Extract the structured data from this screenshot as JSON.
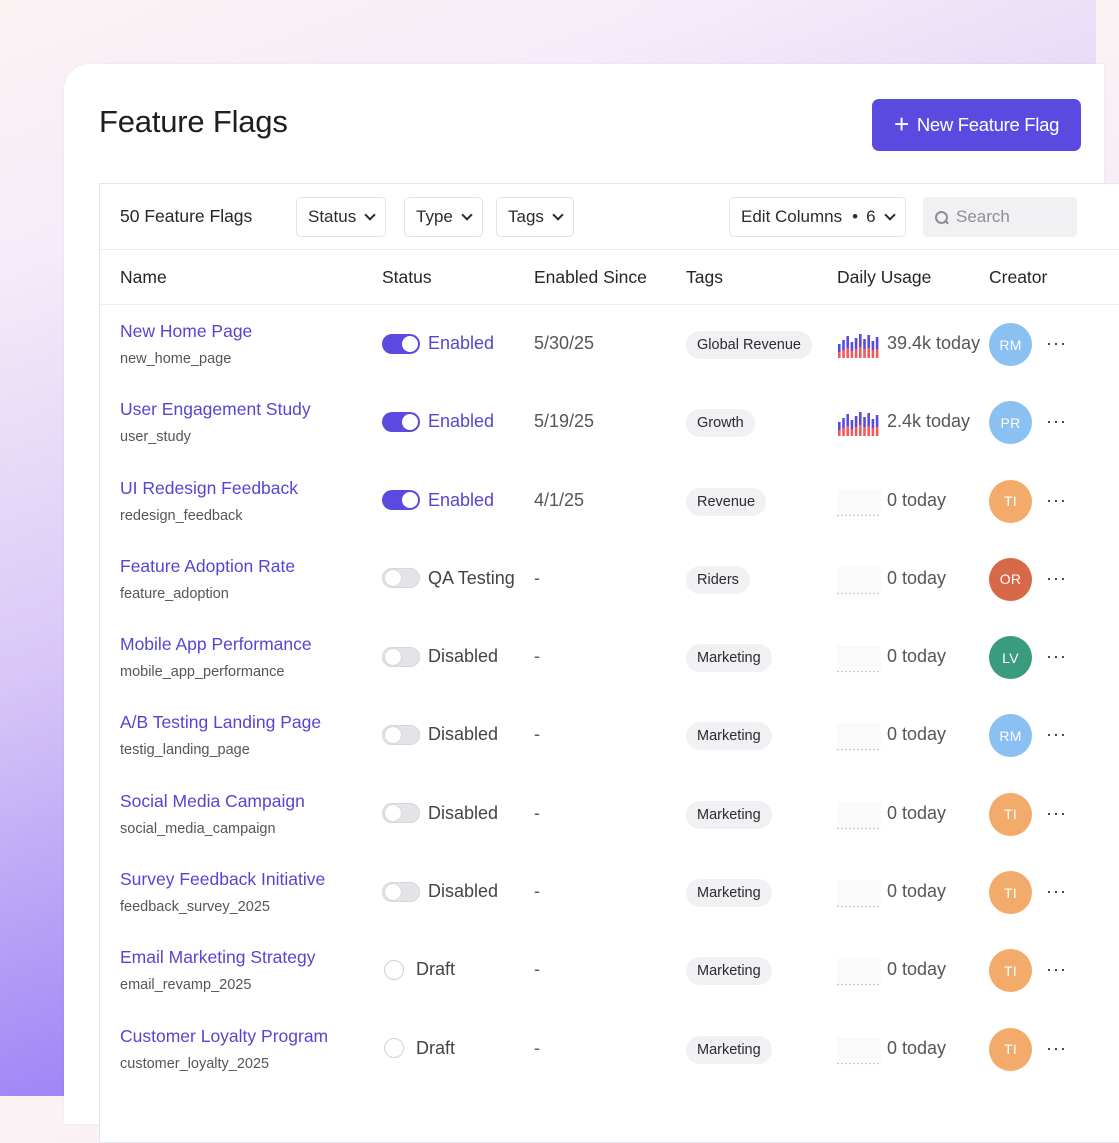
{
  "page": {
    "title": "Feature Flags",
    "new_button_label": "New Feature Flag"
  },
  "toolbar": {
    "count_label": "50 Feature Flags",
    "filters": [
      "Status",
      "Type",
      "Tags"
    ],
    "edit_columns_label": "Edit Columns",
    "edit_columns_count": "6",
    "search_placeholder": "Search"
  },
  "columns": [
    "Name",
    "Status",
    "Enabled Since",
    "Tags",
    "Daily Usage",
    "Creator"
  ],
  "colors": {
    "accent": "#5b4ae0",
    "link": "#5546d2"
  },
  "rows": [
    {
      "name": "New Home Page",
      "key": "new_home_page",
      "status": "Enabled",
      "state": "on",
      "since": "5/30/25",
      "tag": "Global Revenue",
      "usage": "39.4k today",
      "spark": "active",
      "creator": "RM",
      "avatar_color": "#8ac0f2"
    },
    {
      "name": "User Engagement Study",
      "key": "user_study",
      "status": "Enabled",
      "state": "on",
      "since": "5/19/25",
      "tag": "Growth",
      "usage": "2.4k today",
      "spark": "active",
      "creator": "PR",
      "avatar_color": "#8ac0f2"
    },
    {
      "name": "UI Redesign Feedback",
      "key": "redesign_feedback",
      "status": "Enabled",
      "state": "on",
      "since": "4/1/25",
      "tag": "Revenue",
      "usage": "0 today",
      "spark": "empty",
      "creator": "TI",
      "avatar_color": "#f2ab6b"
    },
    {
      "name": "Feature Adoption Rate",
      "key": "feature_adoption",
      "status": "QA Testing",
      "state": "off",
      "since": "-",
      "tag": "Riders",
      "usage": "0 today",
      "spark": "empty",
      "creator": "OR",
      "avatar_color": "#d76848"
    },
    {
      "name": "Mobile App Performance",
      "key": "mobile_app_performance",
      "status": "Disabled",
      "state": "off",
      "since": "-",
      "tag": "Marketing",
      "usage": "0 today",
      "spark": "empty",
      "creator": "LV",
      "avatar_color": "#3a9c7e"
    },
    {
      "name": "A/B Testing Landing Page",
      "key": "testig_landing_page",
      "status": "Disabled",
      "state": "off",
      "since": "-",
      "tag": "Marketing",
      "usage": "0 today",
      "spark": "empty",
      "creator": "RM",
      "avatar_color": "#8ac0f2"
    },
    {
      "name": "Social Media Campaign",
      "key": "social_media_campaign",
      "status": "Disabled",
      "state": "off",
      "since": "-",
      "tag": "Marketing",
      "usage": "0 today",
      "spark": "empty",
      "creator": "TI",
      "avatar_color": "#f2ab6b"
    },
    {
      "name": "Survey Feedback Initiative",
      "key": "feedback_survey_2025",
      "status": "Disabled",
      "state": "off",
      "since": "-",
      "tag": "Marketing",
      "usage": "0 today",
      "spark": "empty",
      "creator": "TI",
      "avatar_color": "#f2ab6b"
    },
    {
      "name": "Email Marketing Strategy",
      "key": "email_revamp_2025",
      "status": "Draft",
      "state": "draft",
      "since": "-",
      "tag": "Marketing",
      "usage": "0 today",
      "spark": "empty",
      "creator": "TI",
      "avatar_color": "#f2ab6b"
    },
    {
      "name": "Customer Loyalty Program",
      "key": "customer_loyalty_2025",
      "status": "Draft",
      "state": "draft",
      "since": "-",
      "tag": "Marketing",
      "usage": "0 today",
      "spark": "empty",
      "creator": "TI",
      "avatar_color": "#f2ab6b"
    }
  ]
}
